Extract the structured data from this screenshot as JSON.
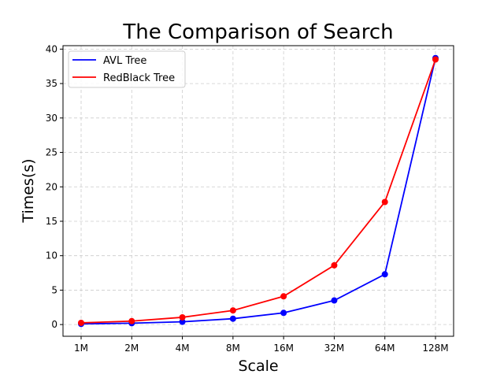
{
  "chart_data": {
    "type": "line",
    "title": "The Comparison of Search",
    "xlabel": "Scale",
    "ylabel": "Times(s)",
    "categories": [
      "1M",
      "2M",
      "4M",
      "8M",
      "16M",
      "32M",
      "64M",
      "128M"
    ],
    "ylim": [
      -1.7,
      40.5
    ],
    "yticks": [
      0,
      5,
      10,
      15,
      20,
      25,
      30,
      35,
      40
    ],
    "grid": true,
    "legend_position": "top-left",
    "series": [
      {
        "name": "AVL Tree",
        "color": "#0000ff",
        "values": [
          0.1,
          0.2,
          0.4,
          0.85,
          1.7,
          3.5,
          7.3,
          38.7
        ]
      },
      {
        "name": "RedBlack Tree",
        "color": "#ff0000",
        "values": [
          0.25,
          0.5,
          1.05,
          2.05,
          4.1,
          8.6,
          17.8,
          38.5
        ]
      }
    ]
  }
}
